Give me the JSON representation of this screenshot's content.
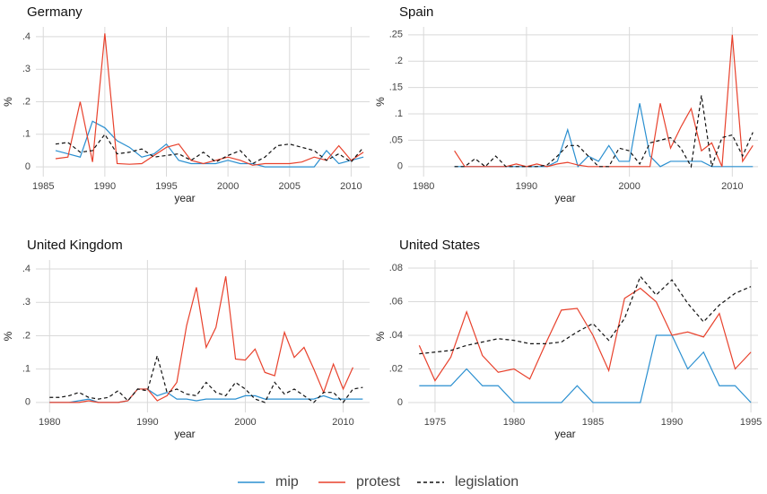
{
  "chart_data": [
    {
      "type": "line",
      "title": "Germany",
      "xlabel": "year",
      "ylabel": "%",
      "x": [
        1986,
        1987,
        1988,
        1989,
        1990,
        1991,
        1992,
        1993,
        1994,
        1995,
        1996,
        1997,
        1998,
        1999,
        2000,
        2001,
        2002,
        2003,
        2004,
        2005,
        2006,
        2007,
        2008,
        2009,
        2010,
        2011
      ],
      "series": [
        {
          "name": "mip",
          "color": "#2a8fd0",
          "dash": false,
          "values": [
            0.05,
            0.04,
            0.03,
            0.14,
            0.12,
            0.08,
            0.06,
            0.03,
            0.04,
            0.07,
            0.02,
            0.01,
            0.01,
            0.01,
            0.02,
            0.01,
            0.01,
            0,
            0,
            0,
            0,
            0,
            0.05,
            0.01,
            0.02,
            0.03
          ]
        },
        {
          "name": "protest",
          "color": "#e8412c",
          "dash": false,
          "values": [
            0.025,
            0.03,
            0.2,
            0.015,
            0.41,
            0.01,
            0.008,
            0.01,
            0.035,
            0.06,
            0.07,
            0.02,
            0.01,
            0.02,
            0.03,
            0.02,
            0.005,
            0.01,
            0.01,
            0.01,
            0.015,
            0.03,
            0.02,
            0.065,
            0.02,
            0.045
          ]
        },
        {
          "name": "legislation",
          "color": "#111111",
          "dash": true,
          "values": [
            0.07,
            0.075,
            0.045,
            0.05,
            0.1,
            0.04,
            0.045,
            0.055,
            0.03,
            0.035,
            0.04,
            0.02,
            0.045,
            0.015,
            0.035,
            0.05,
            0.01,
            0.03,
            0.065,
            0.07,
            0.06,
            0.05,
            0.02,
            0.04,
            0.015,
            0.06
          ]
        }
      ],
      "xlim": [
        1984.4,
        2011.5
      ],
      "xticks": [
        1985,
        1990,
        1995,
        2000,
        2005,
        2010
      ],
      "ylim": [
        -0.03,
        0.43
      ],
      "yticks": [
        0,
        {
          "value": 0.1,
          "label": ".1"
        },
        {
          "value": 0.2,
          "label": ".2"
        },
        {
          "value": 0.3,
          "label": ".3"
        },
        {
          "value": 0.4,
          "label": ".4"
        }
      ],
      "grid": true
    },
    {
      "type": "line",
      "title": "Spain",
      "xlabel": "year",
      "ylabel": "%",
      "x": [
        1983,
        1984,
        1985,
        1986,
        1987,
        1988,
        1989,
        1990,
        1991,
        1992,
        1993,
        1994,
        1995,
        1996,
        1997,
        1998,
        1999,
        2000,
        2001,
        2002,
        2003,
        2004,
        2005,
        2006,
        2007,
        2008,
        2009,
        2010,
        2011,
        2012
      ],
      "series": [
        {
          "color": "#2a8fd0",
          "dash": false,
          "values": [
            0,
            0,
            0,
            0,
            0,
            0,
            0,
            0,
            0,
            0,
            0.01,
            0.07,
            0,
            0.02,
            0.01,
            0.04,
            0.01,
            0.01,
            0.12,
            0.02,
            0,
            0.01,
            0.01,
            0.01,
            0.01,
            0,
            0,
            0,
            0,
            0
          ]
        },
        {
          "color": "#e8412c",
          "dash": false,
          "values": [
            0.03,
            0,
            0,
            0,
            0,
            0,
            0.005,
            0,
            0.005,
            0,
            0.005,
            0.008,
            0.003,
            0,
            0,
            0,
            0,
            0,
            0,
            0,
            0.12,
            0.035,
            0.075,
            0.11,
            0.03,
            0.045,
            0,
            0.25,
            0.01,
            0.04
          ]
        },
        {
          "color": "#111111",
          "dash": true,
          "values": [
            0,
            0,
            0.015,
            0,
            0.02,
            0,
            0,
            0,
            0,
            0.003,
            0.02,
            0.04,
            0.04,
            0.02,
            0,
            0,
            0.035,
            0.03,
            0.005,
            0.045,
            0.05,
            0.055,
            0.035,
            0,
            0.135,
            0,
            0.055,
            0.06,
            0.02,
            0.065
          ]
        }
      ],
      "xlim": [
        1978.5,
        2012.5
      ],
      "xticks": [
        1980,
        1990,
        2000,
        2010
      ],
      "ylim": [
        -0.019,
        0.265
      ],
      "yticks": [
        0,
        {
          "value": 0.05,
          "label": ".05"
        },
        {
          "value": 0.1,
          "label": ".1"
        },
        {
          "value": 0.15,
          "label": ".15"
        },
        {
          "value": 0.2,
          "label": ".2"
        },
        {
          "value": 0.25,
          "label": ".25"
        }
      ],
      "grid": true
    },
    {
      "type": "line",
      "title": "United Kingdom",
      "xlabel": "year",
      "ylabel": "%",
      "x": [
        1980,
        1981,
        1982,
        1983,
        1984,
        1985,
        1986,
        1987,
        1988,
        1989,
        1990,
        1991,
        1992,
        1993,
        1994,
        1995,
        1996,
        1997,
        1998,
        1999,
        2000,
        2001,
        2002,
        2003,
        2004,
        2005,
        2006,
        2007,
        2008,
        2009,
        2010,
        2011,
        2012
      ],
      "series": [
        {
          "color": "#2a8fd0",
          "dash": false,
          "values": [
            0,
            0,
            0,
            0.005,
            0.01,
            0,
            0,
            0,
            0.005,
            0.04,
            0.04,
            0.02,
            0.03,
            0.01,
            0.01,
            0.005,
            0.01,
            0.01,
            0.01,
            0.01,
            0.02,
            0.02,
            0.01,
            0.01,
            0.01,
            0.01,
            0.01,
            0.01,
            0.02,
            0.01,
            0.01,
            0.01,
            0.01
          ]
        },
        {
          "color": "#e8412c",
          "dash": false,
          "values": [
            0,
            0,
            0,
            0,
            0.005,
            0,
            0,
            0,
            0.005,
            0.04,
            0.04,
            0.005,
            0.02,
            0.06,
            0.23,
            0.345,
            0.165,
            0.225,
            0.378,
            0.13,
            0.127,
            0.16,
            0.09,
            0.08,
            0.21,
            0.135,
            0.165,
            0.1,
            0.03,
            0.115,
            0.04,
            0.105,
            null
          ]
        },
        {
          "color": "#111111",
          "dash": true,
          "values": [
            0.015,
            0.015,
            0.02,
            0.03,
            0.015,
            0.01,
            0.015,
            0.035,
            0.005,
            0.04,
            0.035,
            0.14,
            0.03,
            0.04,
            0.025,
            0.02,
            0.06,
            0.03,
            0.02,
            0.06,
            0.04,
            0.01,
            0,
            0.06,
            0.025,
            0.04,
            0.02,
            0,
            0.03,
            0.03,
            0,
            0.04,
            0.045
          ]
        }
      ],
      "xlim": [
        1978.6,
        2012.7
      ],
      "xticks": [
        1980,
        1990,
        2000,
        2010
      ],
      "ylim": [
        -0.03,
        0.427
      ],
      "yticks": [
        0,
        {
          "value": 0.1,
          "label": ".1"
        },
        {
          "value": 0.2,
          "label": ".2"
        },
        {
          "value": 0.3,
          "label": ".3"
        },
        {
          "value": 0.4,
          "label": ".4"
        }
      ],
      "grid": true
    },
    {
      "type": "line",
      "title": "United States",
      "xlabel": "year",
      "ylabel": "%",
      "x": [
        1974,
        1975,
        1976,
        1977,
        1978,
        1979,
        1980,
        1981,
        1982,
        1983,
        1984,
        1985,
        1986,
        1987,
        1988,
        1989,
        1990,
        1991,
        1992,
        1993,
        1994,
        1995
      ],
      "series": [
        {
          "color": "#2a8fd0",
          "dash": false,
          "values": [
            0.01,
            0.01,
            0.01,
            0.02,
            0.01,
            0.01,
            0,
            0,
            0,
            0,
            0.01,
            0,
            0,
            0,
            0,
            0.04,
            0.04,
            0.02,
            0.03,
            0.01,
            0.01,
            0
          ]
        },
        {
          "color": "#e8412c",
          "dash": false,
          "values": [
            0.034,
            0.013,
            0.027,
            0.054,
            0.028,
            0.018,
            0.02,
            0.014,
            0.035,
            0.055,
            0.056,
            0.04,
            0.019,
            0.062,
            0.068,
            0.06,
            0.04,
            0.042,
            0.039,
            0.053,
            0.02,
            0.03
          ]
        },
        {
          "color": "#111111",
          "dash": true,
          "values": [
            0.029,
            0.03,
            0.031,
            0.034,
            0.036,
            0.038,
            0.037,
            0.035,
            0.035,
            0.036,
            0.042,
            0.047,
            0.037,
            0.05,
            0.075,
            0.064,
            0.073,
            0.059,
            0.048,
            0.058,
            0.065,
            0.069
          ]
        }
      ],
      "xlim": [
        1973.3,
        1995.45
      ],
      "xticks": [
        1975,
        1980,
        1985,
        1990,
        1995
      ],
      "ylim": [
        -0.00587,
        0.0848
      ],
      "yticks": [
        0,
        {
          "value": 0.02,
          "label": ".02"
        },
        {
          "value": 0.04,
          "label": ".04"
        },
        {
          "value": 0.06,
          "label": ".06"
        },
        {
          "value": 0.08,
          "label": ".08"
        }
      ],
      "grid": true
    }
  ]
}
